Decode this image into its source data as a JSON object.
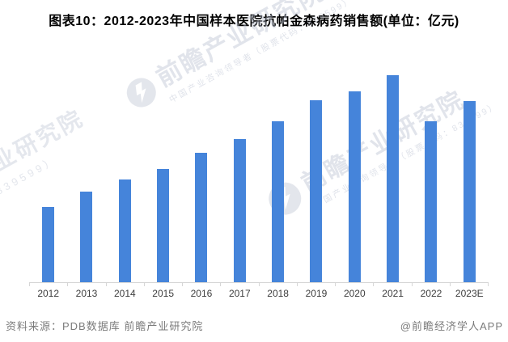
{
  "page": {
    "background": "#FFFFFF"
  },
  "title": "图表10：2012-2023年中国样本医院抗帕金森病药销售额(单位：亿元)",
  "footer": {
    "source": "资料来源：PDB数据库 前瞻产业研究院",
    "credit": "@前瞻经济学人APP"
  },
  "watermark": {
    "brand": "前瞻产业研究院",
    "brand_short": "前瞻产业研究院",
    "tagline": "中国产业咨询领导者（股票代码：839599）",
    "partial_brand": "产业研究院",
    "partial_code": "（839599）",
    "logo": "qianzhan-logo-icon"
  },
  "colors": {
    "bar": "#4584DA",
    "axis": "#D6D6D6",
    "tick_label": "#3D3D3D",
    "title_text": "#000000",
    "footer_text": "#7B7B7B",
    "watermark": "#BAC1D1"
  },
  "chart_data": {
    "type": "bar",
    "title": "2012-2023年中国样本医院抗帕金森病药销售额",
    "unit": "亿元",
    "categories": [
      "2012",
      "2013",
      "2014",
      "2015",
      "2016",
      "2017",
      "2018",
      "2019",
      "2020",
      "2021",
      "2022",
      "2023E"
    ],
    "values": [
      36.5,
      43.8,
      49.8,
      54.9,
      62.5,
      69.3,
      77.7,
      88.1,
      92.4,
      100,
      77.6,
      87.5
    ],
    "value_scale_note": "chart displays no value axis, gridlines or data labels; values are relative bar heights indexed to the 2021 maximum = 100",
    "xlabel": "",
    "ylabel": "",
    "ylim": [
      0,
      105
    ],
    "grid": false,
    "legend": false
  }
}
